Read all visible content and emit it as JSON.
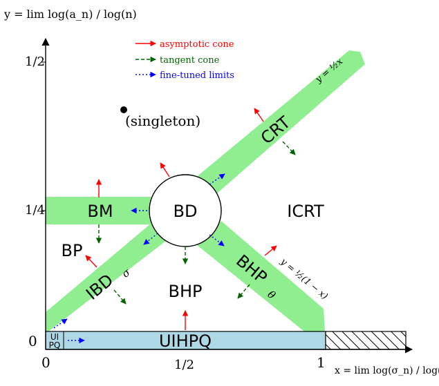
{
  "y_axis_label": "y = lim log(a_n) / log(n)",
  "x_axis_label": "x = lim log(σ_n) / log(n)",
  "y_ticks": {
    "half": "1/2",
    "quarter": "1/4",
    "zero": "0"
  },
  "x_ticks": {
    "zero": "0",
    "half": "1/2",
    "one": "1"
  },
  "legend": [
    {
      "label": "asymptotic cone",
      "color": "#ff0000",
      "style": "solid"
    },
    {
      "label": "tangent cone",
      "color": "#006400",
      "style": "dashed"
    },
    {
      "label": "fine-tuned limits",
      "color": "#0000ff",
      "style": "dotted"
    }
  ],
  "regions": {
    "singleton": "(singleton)",
    "crt": "CRT",
    "icrt": "ICRT",
    "bd": "BD",
    "bm": "BM",
    "bp": "BP",
    "ibd": "IBD",
    "ibd_sub": "σ",
    "bhp": "BHP",
    "bhp_theta": "BHP",
    "bhp_theta_sub": "θ",
    "uihpq": "UIHPQ",
    "uipq_line1": "UI",
    "uipq_line2": "PQ"
  },
  "lines": {
    "upper": "y = ½x",
    "lower": "y = ½(1 − x)"
  },
  "colors": {
    "band": "#90ee90",
    "strip": "#add8e6",
    "red": "#ff0000",
    "green": "#006400",
    "blue": "#0000ff"
  }
}
